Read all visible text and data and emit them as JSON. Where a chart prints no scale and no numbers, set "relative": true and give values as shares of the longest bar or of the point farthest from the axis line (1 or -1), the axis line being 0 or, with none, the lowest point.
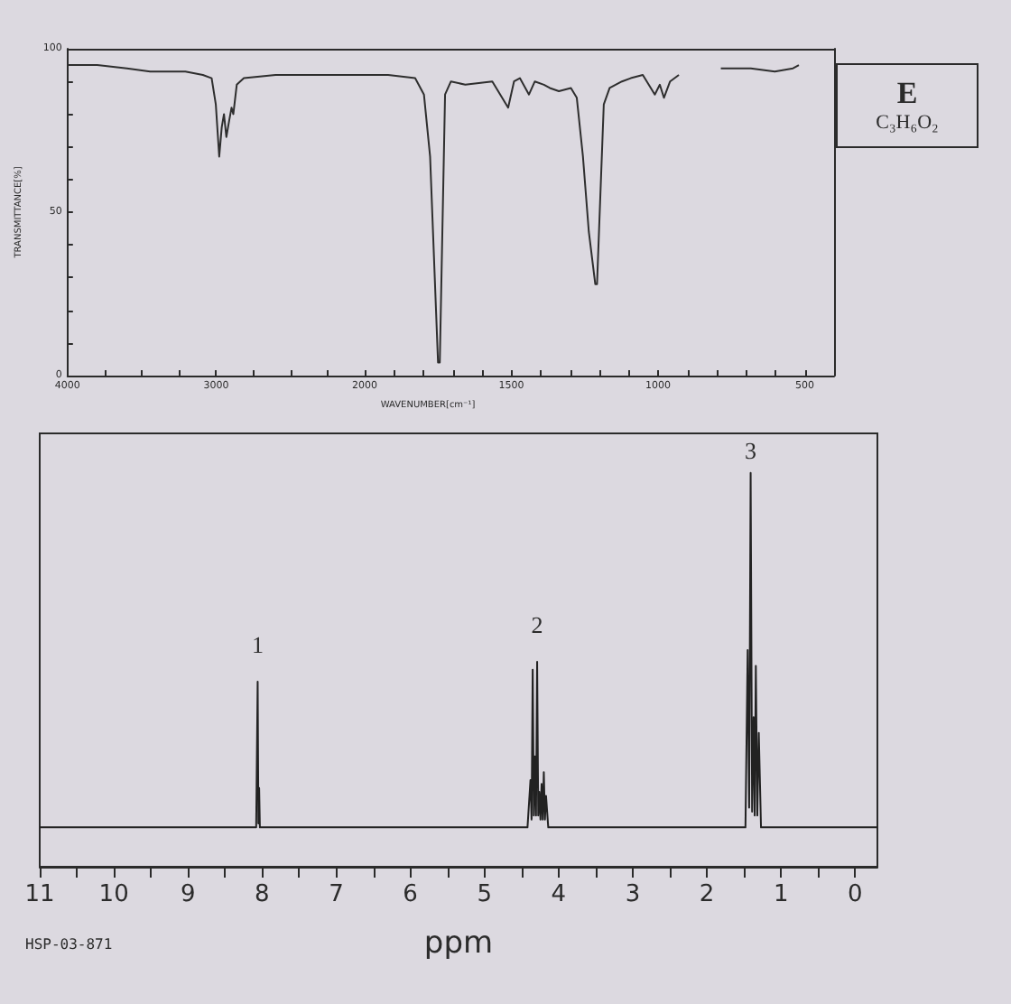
{
  "chart_data": [
    {
      "type": "line",
      "color": "#2e2e2e",
      "x": [
        4000,
        3800,
        3600,
        3444,
        3300,
        3207,
        3089,
        3030,
        3002,
        2979,
        2962,
        2947,
        2931,
        2912,
        2896,
        2884,
        2861,
        2813,
        2600,
        2418,
        2200,
        2000
      ],
      "values": [
        95,
        95,
        94,
        93,
        93,
        93,
        92,
        91,
        83,
        67,
        76,
        80,
        73,
        78,
        82,
        80,
        89,
        91,
        92,
        92,
        92,
        92
      ],
      "xlim": [
        4000,
        2000
      ],
      "xticks": [
        4000,
        {
          "value": 3750,
          "label": null
        },
        {
          "value": 3500,
          "label": null
        },
        {
          "value": 3250,
          "label": null
        },
        3000,
        {
          "value": 2750,
          "label": null
        },
        {
          "value": 2500,
          "label": null
        },
        {
          "value": 2250,
          "label": null
        },
        2000
      ],
      "ylim": [
        0,
        100
      ],
      "yticks": [
        0,
        {
          "value": 10,
          "label": null
        },
        {
          "value": 20,
          "label": null
        },
        {
          "value": 30,
          "label": null
        },
        {
          "value": 40,
          "label": null
        },
        50,
        {
          "value": 60,
          "label": null
        },
        {
          "value": 70,
          "label": null
        },
        {
          "value": 80,
          "label": null
        },
        {
          "value": 90,
          "label": null
        },
        100
      ],
      "ylabel": "TRANSMITTANCE[%]"
    },
    {
      "type": "line",
      "color": "#2e2e2e",
      "x": [
        2000,
        1920,
        1828,
        1798,
        1777,
        1750,
        1744,
        1726,
        1706,
        1657,
        1565,
        1511,
        1491,
        1471,
        1440,
        1420,
        1389,
        1369,
        1338,
        1297,
        1277,
        1256,
        1236,
        1214,
        1208,
        1185,
        1165,
        1123,
        1093,
        1052,
        1011,
        994,
        980,
        959,
        929,
        850,
        786,
        684,
        602,
        540,
        520
      ],
      "values": [
        92,
        92,
        91,
        86,
        67,
        4,
        4,
        86,
        90,
        89,
        90,
        82,
        90,
        91,
        86,
        90,
        89,
        88,
        87,
        88,
        85,
        67,
        44,
        28,
        28,
        83,
        88,
        90,
        91,
        92,
        86,
        89,
        85,
        90,
        92,
        null,
        94,
        94,
        93,
        94,
        95
      ],
      "xlim": [
        2000,
        400
      ],
      "xticks": [
        {
          "value": 1900,
          "label": null
        },
        {
          "value": 1800,
          "label": null
        },
        {
          "value": 1700,
          "label": null
        },
        {
          "value": 1600,
          "label": null
        },
        1500,
        {
          "value": 1400,
          "label": null
        },
        {
          "value": 1300,
          "label": null
        },
        {
          "value": 1200,
          "label": null
        },
        {
          "value": 1100,
          "label": null
        },
        1000,
        {
          "value": 900,
          "label": null
        },
        {
          "value": 800,
          "label": null
        },
        {
          "value": 700,
          "label": null
        },
        {
          "value": 600,
          "label": null
        },
        500
      ],
      "ylim": [
        0,
        100
      ],
      "xlabel": "WAVENUMBER[cm⁻¹]",
      "tick_labels": "x"
    },
    {
      "type": "other",
      "title": "E",
      "subtitle": "C₃H₆O₂"
    },
    {
      "type": "line",
      "relative": true,
      "color": "#222222",
      "x": [
        11,
        9,
        8.2,
        8.08,
        8.06,
        8.05,
        8.04,
        8.03,
        6,
        4.42,
        4.38,
        4.365,
        4.35,
        4.335,
        4.32,
        4.305,
        4.29,
        4.275,
        4.26,
        4.245,
        4.23,
        4.215,
        4.2,
        4.185,
        4.17,
        4.14,
        3,
        1.5,
        1.48,
        1.45,
        1.43,
        1.41,
        1.39,
        1.37,
        1.355,
        1.34,
        1.32,
        1.3,
        1.27,
        0.5,
        -0.3
      ],
      "values": [
        0.1,
        0.1,
        0.1,
        0.1,
        0.47,
        0.11,
        0.2,
        0.1,
        0.1,
        0.1,
        0.22,
        0.12,
        0.5,
        0.13,
        0.28,
        0.13,
        0.52,
        0.13,
        0.19,
        0.12,
        0.21,
        0.12,
        0.24,
        0.12,
        0.18,
        0.1,
        0.1,
        0.1,
        0.1,
        0.55,
        0.15,
        1.0,
        0.14,
        0.38,
        0.13,
        0.51,
        0.13,
        0.34,
        0.1,
        0.1,
        0.1
      ],
      "xlim": [
        11,
        -0.3
      ],
      "xticks": [
        11,
        {
          "value": 10.5,
          "label": null
        },
        10,
        {
          "value": 9.5,
          "label": null
        },
        9,
        {
          "value": 8.5,
          "label": null
        },
        8,
        {
          "value": 7.5,
          "label": null
        },
        7,
        {
          "value": 6.5,
          "label": null
        },
        6,
        {
          "value": 5.5,
          "label": null
        },
        5,
        {
          "value": 4.5,
          "label": null
        },
        4,
        {
          "value": 3.5,
          "label": null
        },
        3,
        {
          "value": 2.5,
          "label": null
        },
        2,
        {
          "value": 1.5,
          "label": null
        },
        1,
        {
          "value": 0.5,
          "label": null
        },
        0
      ],
      "xlabel": "ppm",
      "annotations": [
        {
          "text": "1",
          "x": 8.06,
          "y": 0.47
        },
        {
          "text": "2",
          "x": 4.29,
          "y": 0.52
        },
        {
          "text": "3",
          "x": 1.41,
          "y": 1.0
        },
        "HSP-03-871"
      ]
    }
  ]
}
